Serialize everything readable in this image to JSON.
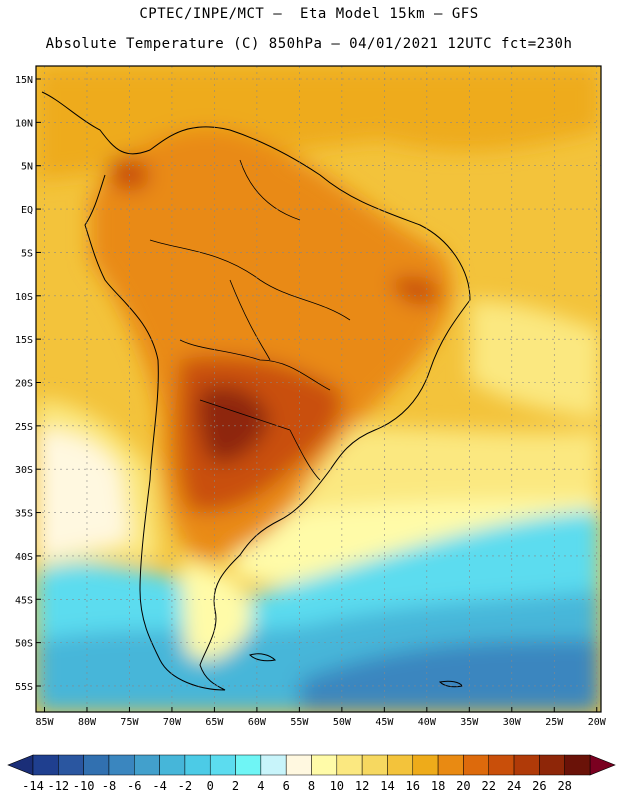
{
  "header": {
    "line1": "CPTEC/INPE/MCT –  Eta Model 15km – GFS",
    "line2": "Absolute Temperature (C) 850hPa – 04/01/2021 12UTC fct=230h"
  },
  "axes": {
    "lat_labels": [
      "15N",
      "10N",
      "5N",
      "EQ",
      "5S",
      "10S",
      "15S",
      "20S",
      "25S",
      "30S",
      "35S",
      "40S",
      "45S",
      "50S",
      "55S"
    ],
    "lat_values": [
      15,
      10,
      5,
      0,
      -5,
      -10,
      -15,
      -20,
      -25,
      -30,
      -35,
      -40,
      -45,
      -50,
      -55
    ],
    "lon_labels": [
      "85W",
      "80W",
      "75W",
      "70W",
      "65W",
      "60W",
      "55W",
      "50W",
      "45W",
      "40W",
      "35W",
      "30W",
      "25W",
      "20W"
    ],
    "lon_values": [
      -85,
      -80,
      -75,
      -70,
      -65,
      -60,
      -55,
      -50,
      -45,
      -40,
      -35,
      -30,
      -25,
      -20
    ]
  },
  "colorbar": {
    "tick_labels": [
      "-14",
      "-12",
      "-10",
      "-8",
      "-6",
      "-4",
      "-2",
      "0",
      "2",
      "4",
      "6",
      "8",
      "10",
      "12",
      "14",
      "16",
      "18",
      "20",
      "22",
      "24",
      "26",
      "28"
    ],
    "colors": [
      "#1f3f8f",
      "#2a56a0",
      "#3170b0",
      "#3a86bf",
      "#42a0cc",
      "#46b6d9",
      "#4ccbe6",
      "#5cdcef",
      "#6ff5f5",
      "#c8f4fa",
      "#fff8e0",
      "#fffba8",
      "#fbe880",
      "#f6d860",
      "#f3c33b",
      "#eeab1a",
      "#e98a12",
      "#dd6a0c",
      "#c94f0a",
      "#b03a08",
      "#8e2608",
      "#6a1208"
    ],
    "under_color": "#1a2e78",
    "over_color": "#7a0020"
  },
  "domain": {
    "lon_min": -86,
    "lon_max": -19.5,
    "lat_min": -58,
    "lat_max": 16.5
  }
}
